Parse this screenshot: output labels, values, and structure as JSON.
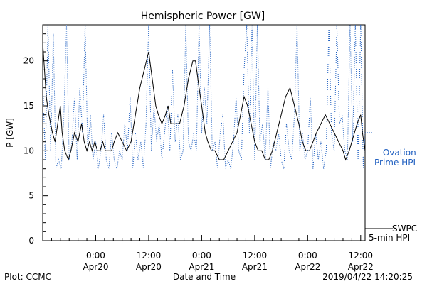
{
  "chart_data": {
    "type": "line",
    "title": "Hemispheric Power [GW]",
    "xlabel": "Date and Time",
    "ylabel": "P [GW]",
    "ylim": [
      0,
      24
    ],
    "xlim_hours": [
      -6,
      30.5
    ],
    "yticks": [
      0,
      5,
      10,
      15,
      20
    ],
    "xticks": [
      {
        "h": 0,
        "time": "0:00",
        "date": "Apr20"
      },
      {
        "h": 6,
        "time": "12:00",
        "date": "Apr20"
      },
      {
        "h": 12,
        "time": "0:00",
        "date": "Apr21"
      },
      {
        "h": 18,
        "time": "12:00",
        "date": "Apr21"
      },
      {
        "h": 24,
        "time": "0:00",
        "date": "Apr22"
      },
      {
        "h": 30,
        "time": "12:00",
        "date": "Apr22"
      }
    ],
    "series": [
      {
        "name": "5-min HPI",
        "label_line1": "SWPC",
        "label_line2": "5-min HPI",
        "color": "#000000",
        "style": "solid",
        "x": [
          -6,
          -5.6,
          -5.3,
          -4.9,
          -4.6,
          -4.3,
          -4,
          -3.8,
          -3.5,
          -3.1,
          -2.8,
          -2.4,
          -2,
          -1.6,
          -1.3,
          -1,
          -0.7,
          -0.4,
          -0.1,
          0.2,
          0.5,
          0.8,
          1.1,
          1.4,
          1.8,
          2.1,
          2.5,
          3,
          3.5,
          4,
          4.5,
          5,
          5.5,
          6,
          6.4,
          6.8,
          7.1,
          7.5,
          7.9,
          8.2,
          8.5,
          9,
          9.5,
          10,
          10.5,
          11,
          11.3,
          11.7,
          12,
          12.4,
          12.7,
          13.1,
          13.5,
          14,
          14.5,
          15,
          15.5,
          16,
          16.4,
          16.8,
          17.2,
          17.6,
          18,
          18.4,
          18.8,
          19.2,
          19.6,
          20,
          20.5,
          21,
          21.5,
          22,
          22.5,
          23,
          23.4,
          23.8,
          24.2,
          24.6,
          25,
          25.5,
          26,
          26.5,
          27,
          27.5,
          28,
          28.3,
          28.7,
          29,
          29.3,
          29.6,
          30,
          30.2,
          30.5
        ],
        "y": [
          22,
          16,
          14,
          12,
          11,
          13,
          15,
          12,
          10,
          9,
          10,
          12,
          11,
          13,
          11,
          10,
          11,
          10,
          11,
          10,
          10,
          11,
          10,
          10,
          10,
          11,
          12,
          11,
          10,
          11,
          14,
          17,
          19,
          21,
          18,
          15,
          14,
          13,
          14,
          15,
          13,
          13,
          13,
          15,
          18,
          20,
          20,
          17,
          15,
          12,
          11,
          10,
          10,
          9,
          9,
          10,
          11,
          12,
          14,
          16,
          15,
          13,
          11,
          10,
          10,
          9,
          9,
          10,
          12,
          14,
          16,
          17,
          15,
          13,
          11,
          10,
          10,
          11,
          12,
          13,
          14,
          13,
          12,
          11,
          10,
          9,
          10,
          11,
          12,
          13,
          14,
          12,
          10
        ]
      },
      {
        "name": "Ovation Prime HPI",
        "label_line1": "– Ovation",
        "label_line2": "Prime HPI",
        "color": "#1f5fc0",
        "style": "dotted",
        "x": [
          -6,
          -5.7,
          -5.4,
          -5.1,
          -4.8,
          -4.5,
          -4.2,
          -3.9,
          -3.6,
          -3.3,
          -3,
          -2.7,
          -2.4,
          -2.1,
          -1.8,
          -1.5,
          -1.2,
          -0.9,
          -0.6,
          -0.3,
          0,
          0.3,
          0.6,
          0.9,
          1.2,
          1.5,
          1.8,
          2.1,
          2.4,
          2.7,
          3,
          3.3,
          3.6,
          3.9,
          4.2,
          4.5,
          4.8,
          5.1,
          5.4,
          5.7,
          6,
          6.3,
          6.6,
          6.9,
          7.2,
          7.5,
          7.8,
          8.1,
          8.4,
          8.7,
          9,
          9.3,
          9.6,
          9.9,
          10.2,
          10.5,
          10.8,
          11.1,
          11.4,
          11.7,
          12,
          12.3,
          12.6,
          12.9,
          13.2,
          13.5,
          13.8,
          14.1,
          14.4,
          14.7,
          15,
          15.3,
          15.6,
          15.9,
          16.2,
          16.5,
          16.8,
          17.1,
          17.4,
          17.7,
          18,
          18.3,
          18.6,
          18.9,
          19.2,
          19.5,
          19.8,
          20.1,
          20.4,
          20.7,
          21,
          21.3,
          21.6,
          21.9,
          22.2,
          22.5,
          22.8,
          23.1,
          23.4,
          23.7,
          24,
          24.3,
          24.6,
          24.9,
          25.2,
          25.5,
          25.8,
          26.1,
          26.4,
          26.7,
          27,
          27.3,
          27.6,
          27.9,
          28.2,
          28.5,
          28.8,
          29.1,
          29.4,
          29.7,
          30,
          30.3,
          30.5
        ],
        "y": [
          18,
          9,
          24,
          10,
          23,
          8,
          9,
          8,
          14,
          24,
          9,
          11,
          16,
          9,
          17,
          12,
          24,
          10,
          14,
          9,
          11,
          8,
          10,
          14,
          9,
          8,
          12,
          9,
          8,
          10,
          9,
          13,
          10,
          16,
          8,
          12,
          9,
          11,
          8,
          13,
          24,
          10,
          15,
          11,
          13,
          9,
          12,
          15,
          10,
          19,
          11,
          14,
          9,
          10,
          24,
          11,
          10,
          12,
          10,
          24,
          12,
          17,
          13,
          24,
          10,
          11,
          8,
          12,
          14,
          8,
          9,
          8,
          11,
          16,
          10,
          9,
          19,
          24,
          12,
          24,
          9,
          24,
          11,
          13,
          9,
          17,
          8,
          11,
          10,
          12,
          9,
          8,
          13,
          10,
          9,
          14,
          24,
          10,
          12,
          9,
          10,
          16,
          8,
          12,
          9,
          11,
          8,
          10,
          24,
          12,
          10,
          24,
          13,
          14,
          10,
          9,
          24,
          11,
          24,
          9,
          24,
          8,
          12
        ]
      }
    ],
    "footer_left": "Plot: CCMC",
    "footer_right": "2019/04/22 14:20:25"
  }
}
